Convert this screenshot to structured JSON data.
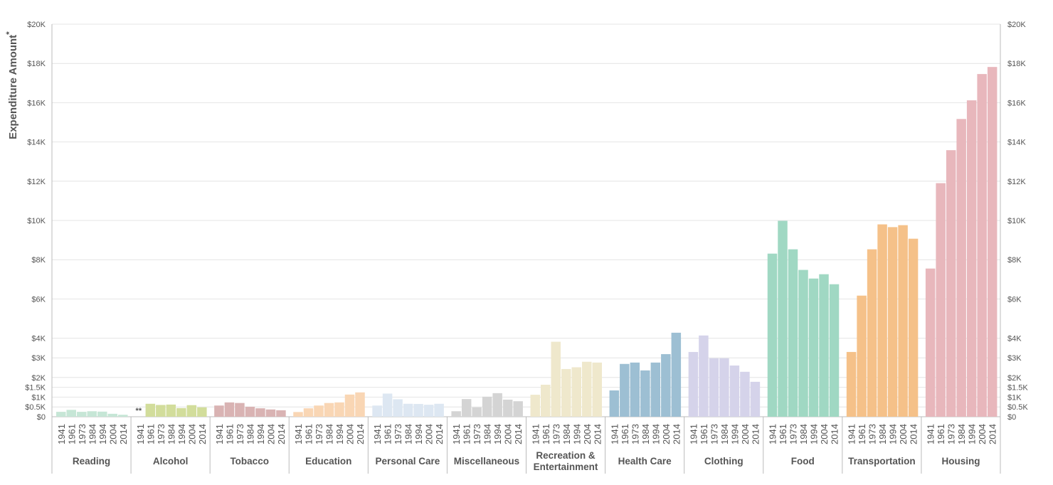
{
  "chart_data": {
    "type": "bar",
    "ylabel": "Expenditure Amount",
    "ylabel_marker": "*",
    "ylim": [
      0,
      20000
    ],
    "yticks": [
      0,
      500,
      1000,
      1500,
      2000,
      3000,
      4000,
      6000,
      8000,
      10000,
      12000,
      14000,
      16000,
      18000,
      20000
    ],
    "ytick_labels": [
      "$0",
      "$0.5K",
      "$1K",
      "$1.5K",
      "$2K",
      "$3K",
      "$4K",
      "$6K",
      "$8K",
      "$10K",
      "$12K",
      "$14K",
      "$16K",
      "$18K",
      "$20K"
    ],
    "grid": true,
    "years": [
      "1941",
      "1961",
      "1973",
      "1984",
      "1994",
      "2004",
      "2014"
    ],
    "missing_marker": "**",
    "groups": [
      {
        "name": "Reading",
        "color": "#c6e6d6",
        "values": [
          250,
          350,
          250,
          280,
          260,
          150,
          100
        ]
      },
      {
        "name": "Alcohol",
        "color": "#d2dd9b",
        "values": [
          null,
          660,
          600,
          620,
          440,
          590,
          480
        ]
      },
      {
        "name": "Tobacco",
        "color": "#d9b3b3",
        "values": [
          570,
          730,
          700,
          510,
          430,
          370,
          330
        ]
      },
      {
        "name": "Education",
        "color": "#f9d6b4",
        "values": [
          240,
          430,
          570,
          700,
          730,
          1130,
          1240
        ]
      },
      {
        "name": "Personal Care",
        "color": "#dde7f2",
        "values": [
          570,
          1180,
          890,
          660,
          650,
          610,
          660
        ]
      },
      {
        "name": "Miscellaneous",
        "color": "#d4d4d4",
        "values": [
          280,
          900,
          480,
          1020,
          1200,
          870,
          790
        ]
      },
      {
        "name": "Recreation & Entertainment",
        "lines": [
          "Recreation &",
          "Entertainment"
        ],
        "color": "#efe8cc",
        "values": [
          1120,
          1630,
          3820,
          2430,
          2520,
          2800,
          2760
        ]
      },
      {
        "name": "Health Care",
        "color": "#9dbfd3",
        "values": [
          1340,
          2690,
          2760,
          2360,
          2760,
          3190,
          4280
        ]
      },
      {
        "name": "Clothing",
        "color": "#d5d3ea",
        "values": [
          3300,
          4140,
          2980,
          2980,
          2610,
          2290,
          1780
        ]
      },
      {
        "name": "Food",
        "color": "#a0d8c3",
        "values": [
          8310,
          9980,
          8530,
          7480,
          7040,
          7260,
          6750
        ]
      },
      {
        "name": "Transportation",
        "color": "#f5c189",
        "values": [
          3300,
          6170,
          8530,
          9800,
          9660,
          9760,
          9070
        ]
      },
      {
        "name": "Housing",
        "color": "#e8b7bc",
        "values": [
          7550,
          11900,
          13580,
          15170,
          16120,
          17460,
          17820
        ]
      }
    ]
  }
}
